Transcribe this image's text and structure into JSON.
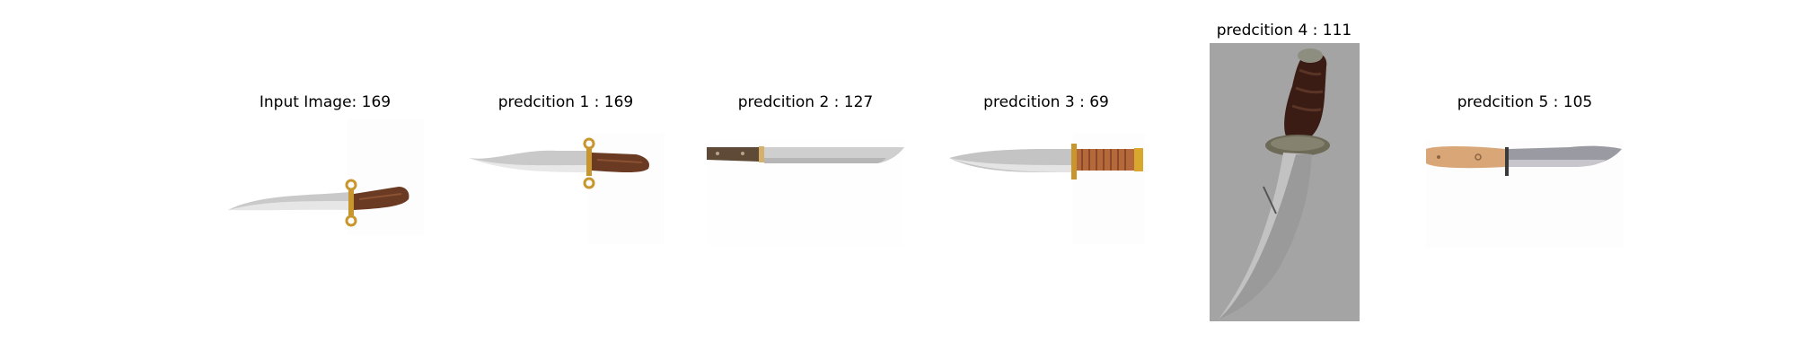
{
  "panels": [
    {
      "title": "Input Image: 169",
      "image": "bowie knife with curved blade, brass S-guard and wooden handle on white background",
      "icon": "knife-icon"
    },
    {
      "title": "predcition 1 : 169",
      "image": "bowie knife with brass S-guard and wooden handle on white background",
      "icon": "knife-icon"
    },
    {
      "title": "predcition 2 : 127",
      "image": "long straight knife with dark wooden handle on white background",
      "icon": "knife-icon"
    },
    {
      "title": "predcition 3 : 69",
      "image": "bowie knife with brass guard and cord-wrapped handle on white background",
      "icon": "knife-icon"
    },
    {
      "title": "predcition 4 : 111",
      "image": "vertical hunting knife with dark handle and silver guard on grey background",
      "icon": "knife-icon"
    },
    {
      "title": "predcition 5 : 105",
      "image": "clip point knife with light wooden handle on white background",
      "icon": "knife-icon"
    }
  ],
  "colors": {
    "background": "#ffffff",
    "title_text": "#000000",
    "grey_backdrop": "#a4a4a4",
    "blade": "#c8c8c8",
    "brass": "#c9962e",
    "wood_dark": "#5a3220",
    "wood_light": "#d9a677"
  }
}
